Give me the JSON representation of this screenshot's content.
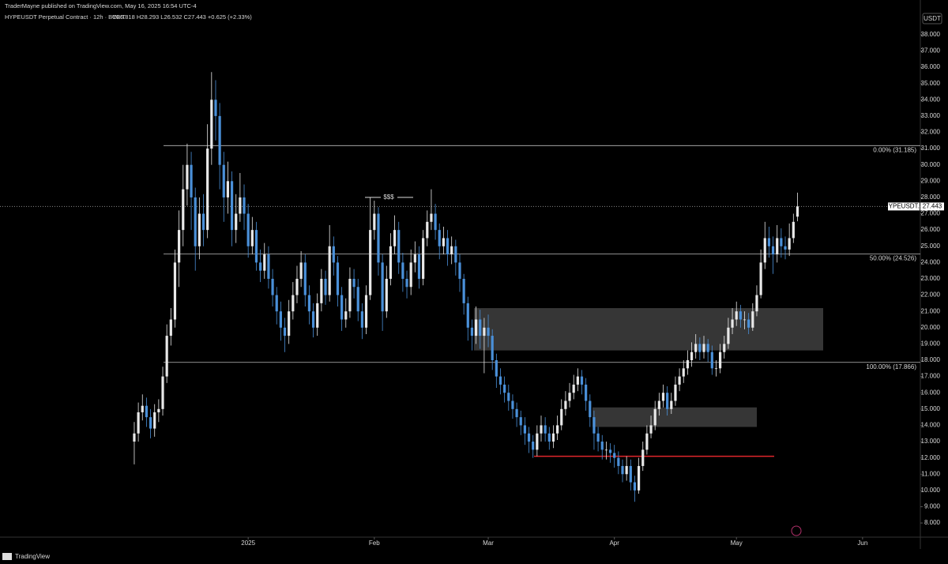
{
  "header": {
    "publisher": "TraderMayne published on TradingView.com, May 16, 2025 16:54 UTC-4",
    "symbol": "HYPEUSDT Perpetual Contract · 12h · BYBIT",
    "quote": "O26.818 H28.293 L26.532 C27.443 +0.625 (+2.33%)",
    "currency": "USDT"
  },
  "footer": {
    "brand": "TradingView"
  },
  "chart_data": {
    "type": "candlestick",
    "up_color": "#e8e8e8",
    "down_color": "#4a90d9",
    "open": [
      13.0,
      13.5,
      14.8,
      15.2,
      14.5,
      13.8,
      14.8,
      15.0,
      17.0,
      19.5,
      20.5,
      24.0,
      26.0,
      28.5,
      30.0,
      28.0,
      25.0,
      27.0,
      26.0,
      31.0,
      34.0,
      33.0,
      30.0,
      28.0,
      29.0,
      26.0,
      27.0,
      28.0,
      27,
      25,
      26,
      24,
      23.5,
      24.5,
      23,
      22,
      21,
      20,
      19.5,
      21,
      22,
      23,
      24,
      22,
      21,
      20,
      21.5,
      23,
      22,
      25,
      24,
      22,
      20.5,
      21,
      23,
      22.5,
      21,
      20,
      22,
      26,
      27,
      24,
      21,
      23,
      25,
      26,
      24,
      23,
      22.5,
      24,
      24.5,
      23,
      25.5,
      26.5,
      27,
      26,
      25,
      25.5,
      24.5,
      25,
      24,
      23,
      21.5,
      20,
      19.5,
      20.5,
      19.5,
      20,
      19.5,
      18,
      17,
      16.5,
      16,
      15.5,
      15,
      14.5,
      14,
      13.5,
      13,
      12.5,
      13.5,
      14,
      13.5,
      13,
      13.5,
      14,
      15,
      15.5,
      16,
      16.5,
      17,
      16.5,
      15.5,
      14.5,
      13.5,
      13,
      12.5,
      12.5,
      12.3,
      12,
      11.5,
      11,
      11.5,
      10.5,
      10,
      11.5,
      12.5,
      13.5,
      14,
      15,
      15.5,
      16,
      15,
      15.5,
      16.5,
      17,
      17.5,
      18,
      18.5,
      19,
      18.5,
      19,
      18.5,
      17.5,
      17.5,
      18.5,
      19,
      20,
      20.5,
      21,
      20.5,
      20.5,
      20,
      21,
      22,
      24,
      25.5,
      25,
      24.5,
      25.5,
      25,
      24.8,
      25.5,
      26.818
    ],
    "high": [
      14.2,
      15.4,
      15.9,
      15.7,
      15.0,
      15.3,
      15.6,
      17.6,
      20.2,
      21.2,
      24.8,
      27.2,
      30.0,
      31.3,
      30.8,
      28.6,
      28.0,
      28.2,
      32.5,
      35.7,
      35.2,
      33.8,
      30.8,
      30.2,
      29.6,
      28.2,
      29.5,
      28.8,
      27.6,
      26.8,
      26.5,
      24.8,
      25.2,
      25.0,
      23.6,
      22.5,
      21.6,
      20.6,
      21.7,
      22.8,
      23.8,
      24.7,
      24.5,
      22.6,
      21.5,
      22.1,
      23.6,
      23.5,
      26.3,
      25.6,
      24.4,
      22.5,
      21.8,
      23.7,
      23.6,
      23.0,
      21.5,
      22.6,
      28.0,
      27.8,
      27.4,
      24.5,
      23.8,
      25.8,
      26.9,
      26.5,
      24.6,
      23.5,
      24.8,
      25.3,
      25.0,
      26.0,
      27.2,
      28.5,
      27.6,
      26.4,
      26.2,
      26.0,
      25.6,
      25.4,
      24.5,
      23.3,
      21.9,
      20.5,
      21.3,
      21.1,
      20.6,
      20.8,
      19.9,
      18.4,
      17.5,
      17.0,
      16.5,
      15.9,
      15.4,
      14.9,
      14.5,
      13.9,
      13.4,
      14.0,
      14.6,
      14.5,
      13.9,
      14.0,
      14.6,
      15.6,
      16.1,
      16.6,
      17.1,
      17.5,
      17.4,
      16.9,
      15.9,
      14.9,
      13.9,
      13.4,
      13.0,
      12.9,
      12.8,
      12.4,
      11.9,
      12.1,
      11.9,
      10.9,
      12.0,
      13.0,
      14.0,
      14.6,
      15.5,
      16.0,
      16.5,
      16.4,
      16.0,
      17.0,
      17.5,
      18.0,
      18.6,
      19.1,
      19.6,
      19.4,
      19.5,
      19.3,
      18.9,
      18.0,
      19.0,
      19.5,
      20.6,
      21.2,
      21.6,
      21.4,
      21.0,
      20.9,
      21.5,
      22.6,
      24.8,
      26.5,
      26.2,
      25.6,
      26.3,
      26.1,
      25.6,
      26.4,
      27.0,
      28.293
    ],
    "low": [
      11.6,
      13.0,
      14.3,
      13.9,
      13.2,
      13.3,
      14.2,
      14.6,
      16.6,
      18.9,
      20.0,
      22.5,
      25.0,
      27.5,
      26.0,
      23.5,
      24.2,
      25.0,
      25.5,
      30.0,
      31.5,
      28.5,
      26.5,
      27.0,
      25.0,
      25.2,
      26.5,
      26.0,
      24.3,
      24.5,
      23.5,
      22.8,
      23.0,
      22.4,
      21.3,
      20.2,
      19.2,
      18.5,
      19.0,
      20.5,
      21.5,
      22.5,
      21.3,
      20.2,
      19.4,
      19.5,
      21.0,
      21.4,
      21.6,
      23.2,
      21.3,
      19.8,
      20.0,
      20.6,
      21.8,
      20.4,
      19.3,
      19.6,
      21.7,
      25.4,
      23.2,
      19.8,
      20.6,
      22.6,
      24.5,
      23.3,
      22.2,
      21.8,
      22.0,
      23.4,
      22.4,
      22.6,
      25.0,
      26.0,
      25.4,
      24.2,
      24.5,
      23.8,
      23.9,
      23.2,
      22.2,
      20.8,
      19.2,
      18.6,
      19.0,
      18.7,
      17.2,
      18.8,
      17.4,
      16.3,
      15.9,
      15.4,
      14.9,
      14.4,
      13.9,
      13.4,
      12.8,
      12.3,
      12.0,
      12.1,
      13.0,
      13.0,
      12.5,
      12.6,
      13.1,
      13.7,
      14.6,
      15.1,
      15.6,
      16.1,
      15.9,
      14.9,
      13.9,
      12.5,
      12.4,
      11.9,
      11.9,
      11.7,
      11.4,
      11.0,
      10.5,
      10.6,
      10.0,
      9.3,
      9.8,
      11.2,
      12.2,
      13.2,
      13.7,
      14.6,
      15.1,
      14.6,
      14.7,
      15.2,
      16.1,
      16.6,
      17.1,
      17.6,
      18.1,
      18.0,
      18.1,
      17.9,
      17.1,
      17.0,
      17.2,
      18.1,
      18.7,
      19.6,
      20.1,
      20.0,
      19.9,
      19.6,
      19.8,
      20.7,
      21.8,
      23.6,
      24.3,
      23.3,
      24.0,
      24.3,
      24.2,
      24.4,
      25.2,
      26.532
    ],
    "close": [
      13.5,
      14.8,
      15.2,
      14.5,
      13.8,
      14.8,
      15.0,
      17.0,
      19.5,
      20.5,
      24.0,
      26.0,
      28.5,
      30.0,
      28.0,
      25.0,
      27.0,
      26.0,
      31.0,
      34.0,
      33.0,
      30.0,
      28.0,
      29.0,
      26.0,
      27.0,
      28.0,
      27.0,
      25,
      26,
      24,
      23.5,
      24.5,
      23,
      22,
      21,
      20,
      19.5,
      21,
      22,
      23,
      24,
      22,
      21,
      20,
      21.5,
      23,
      22,
      25,
      24,
      22,
      20.5,
      21,
      23,
      22.5,
      21,
      20,
      22,
      26,
      27,
      24,
      21,
      23,
      25,
      26,
      24,
      23,
      22.5,
      24,
      24.5,
      23,
      25.5,
      26.5,
      27,
      26,
      25,
      25.5,
      24.5,
      25,
      24,
      23,
      21.5,
      20,
      19.5,
      20.5,
      19.5,
      20,
      19.5,
      18,
      17,
      16.5,
      16,
      15.5,
      15,
      14.5,
      14,
      13.5,
      13,
      12.5,
      13.5,
      14,
      13.5,
      13,
      13.5,
      14,
      15,
      15.5,
      16,
      16.5,
      17,
      16.5,
      15.5,
      14.5,
      13.5,
      13,
      12.5,
      12.5,
      12.3,
      12,
      11.5,
      11,
      11.5,
      10.5,
      10,
      11.5,
      12.5,
      13.5,
      14,
      15,
      15.5,
      16,
      15,
      15.5,
      16.5,
      17,
      17.5,
      18,
      18.5,
      19,
      18.5,
      19,
      18.5,
      17.5,
      17.5,
      18.5,
      19,
      20,
      20.5,
      21,
      20.5,
      20.5,
      20,
      21,
      22,
      24,
      25.5,
      25,
      24.5,
      25.5,
      25,
      24.8,
      25.5,
      26.5,
      27.443
    ],
    "xlim": [
      -33,
      193.2
    ],
    "xticks": [
      {
        "value": 28,
        "label": "2025"
      },
      {
        "value": 59,
        "label": "Feb"
      },
      {
        "value": 87,
        "label": "Mar"
      },
      {
        "value": 118,
        "label": "Apr"
      },
      {
        "value": 148,
        "label": "May"
      },
      {
        "value": 179,
        "label": "Jun"
      }
    ],
    "ylim": [
      7.13,
      39.4
    ],
    "yticks": [
      {
        "value": 8,
        "label": "8.000"
      },
      {
        "value": 9,
        "label": "9.000"
      },
      {
        "value": 10,
        "label": "10.000"
      },
      {
        "value": 11,
        "label": "11.000"
      },
      {
        "value": 12,
        "label": "12.000"
      },
      {
        "value": 13,
        "label": "13.000"
      },
      {
        "value": 14,
        "label": "14.000"
      },
      {
        "value": 15,
        "label": "15.000"
      },
      {
        "value": 16,
        "label": "16.000"
      },
      {
        "value": 17,
        "label": "17.000"
      },
      {
        "value": 18,
        "label": "18.000"
      },
      {
        "value": 19,
        "label": "19.000"
      },
      {
        "value": 20,
        "label": "20.000"
      },
      {
        "value": 21,
        "label": "21.000"
      },
      {
        "value": 22,
        "label": "22.000"
      },
      {
        "value": 23,
        "label": "23.000"
      },
      {
        "value": 24,
        "label": "24.000"
      },
      {
        "value": 25,
        "label": "25.000"
      },
      {
        "value": 26,
        "label": "26.000"
      },
      {
        "value": 27,
        "label": "27.000"
      },
      {
        "value": 28,
        "label": "28.000"
      },
      {
        "value": 29,
        "label": "29.000"
      },
      {
        "value": 30,
        "label": "30.000"
      },
      {
        "value": 31,
        "label": "31.000"
      },
      {
        "value": 32,
        "label": "32.000"
      },
      {
        "value": 33,
        "label": "33.000"
      },
      {
        "value": 34,
        "label": "34.000"
      },
      {
        "value": 35,
        "label": "35.000"
      },
      {
        "value": 36,
        "label": "36.000"
      },
      {
        "value": 37,
        "label": "37.000"
      },
      {
        "value": 38,
        "label": "38.000"
      }
    ],
    "levels": [
      {
        "value": 31.185,
        "label": "0.00% (31.185)"
      },
      {
        "value": 24.526,
        "label": "50.00% (24.526)"
      },
      {
        "value": 17.866,
        "label": "100.00% (17.866)"
      }
    ],
    "zones": [
      {
        "top": 21.2,
        "bottom": 18.6
      },
      {
        "top": 15.1,
        "bottom": 13.9
      }
    ],
    "support": {
      "value": 12.1,
      "color": "#e0262b"
    },
    "annotation": {
      "text": "$$$",
      "value": 28.0
    },
    "last_price": {
      "value": 27.443,
      "symbol": "HYPEUSDT.P",
      "label": "27.443"
    }
  }
}
